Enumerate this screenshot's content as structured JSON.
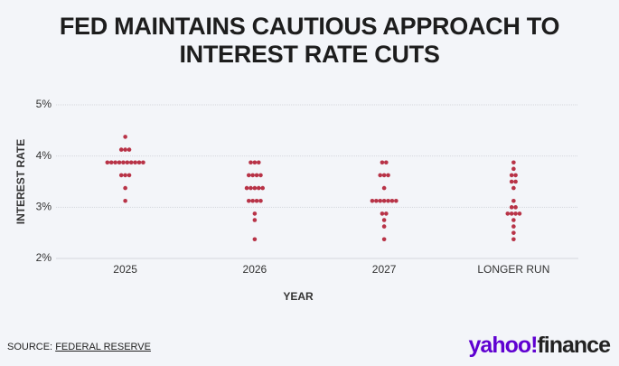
{
  "chart_data": {
    "type": "dot",
    "title": "FED MAINTAINS CAUTIOUS APPROACH TO INTEREST RATE CUTS",
    "x_label": "YEAR",
    "y_label": "INTEREST RATE",
    "categories": [
      "2025",
      "2026",
      "2027",
      "LONGER RUN"
    ],
    "values": [
      [
        4.375,
        4.125,
        4.125,
        4.125,
        3.875,
        3.875,
        3.875,
        3.875,
        3.875,
        3.875,
        3.875,
        3.875,
        3.875,
        3.875,
        3.625,
        3.625,
        3.625,
        3.375,
        3.125
      ],
      [
        3.875,
        3.875,
        3.875,
        3.625,
        3.625,
        3.625,
        3.625,
        3.375,
        3.375,
        3.375,
        3.375,
        3.375,
        3.125,
        3.125,
        3.125,
        3.125,
        2.875,
        2.75,
        2.375
      ],
      [
        3.875,
        3.875,
        3.625,
        3.625,
        3.625,
        3.375,
        3.125,
        3.125,
        3.125,
        3.125,
        3.125,
        3.125,
        3.125,
        2.875,
        2.875,
        2.75,
        2.625,
        2.375
      ],
      [
        3.875,
        3.75,
        3.625,
        3.625,
        3.5,
        3.5,
        3.375,
        3.125,
        3.0,
        3.0,
        2.875,
        2.875,
        2.875,
        2.875,
        2.75,
        2.625,
        2.5,
        2.375
      ]
    ],
    "color": "#b83347",
    "ylim": [
      2,
      5
    ],
    "yticks": [
      {
        "value": 2,
        "label": "2%"
      },
      {
        "value": 3,
        "label": "3%"
      },
      {
        "value": 4,
        "label": "4%"
      },
      {
        "value": 5,
        "label": "5%"
      }
    ],
    "grid": true
  },
  "footer": {
    "source_label": "SOURCE:",
    "source": "FEDERAL RESERVE",
    "logo": [
      "yahoo!",
      "finance"
    ]
  }
}
